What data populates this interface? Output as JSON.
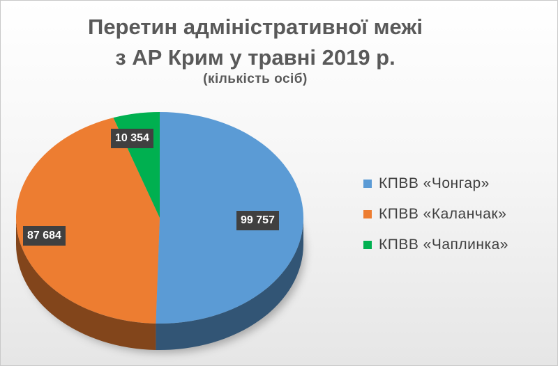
{
  "chart_data": {
    "type": "pie",
    "title_line1": "Перетин адміністративної межі",
    "title_line2": "з АР Крим у травні 2019 р.",
    "subtitle": "(кількість осіб)",
    "slices": [
      {
        "name": "КПВВ «Чонгар»",
        "value": 99757,
        "label": "99 757",
        "color": "#5b9bd5"
      },
      {
        "name": "КПВВ «Каланчак»",
        "value": 87684,
        "label": "87 684",
        "color": "#ed7d31"
      },
      {
        "name": "КПВВ «Чаплинка»",
        "value": 10354,
        "label": "10 354",
        "color": "#00b050"
      }
    ],
    "legend_position": "right"
  }
}
